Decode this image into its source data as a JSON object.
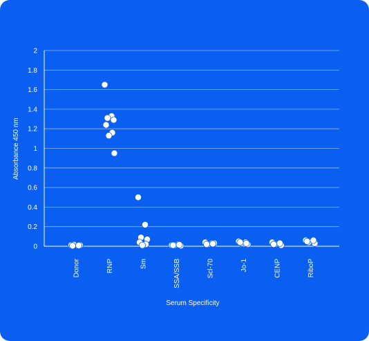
{
  "chart_data": {
    "type": "scatter",
    "title": "",
    "xlabel": "Serum Specificity",
    "ylabel": "Absorbance 450 nm",
    "ylim": [
      0,
      2
    ],
    "yticks": [
      "0",
      "0.2",
      "0.4",
      "0.6",
      "0.8",
      "1",
      "1.2",
      "1.4",
      "1.6",
      "1.8",
      "2"
    ],
    "grid": true,
    "categories": [
      "Donor",
      "RNP",
      "Sm",
      "SSA/SSB",
      "Scl-70",
      "Jo-1",
      "CENP",
      "RiboP"
    ],
    "points": [
      {
        "category": "Donor",
        "y": [
          0.01,
          0.005,
          0.015,
          0.01,
          0.005,
          0.008
        ]
      },
      {
        "category": "RNP",
        "y": [
          1.65,
          1.33,
          1.31,
          1.29,
          1.24,
          1.16,
          1.13,
          0.95
        ]
      },
      {
        "category": "Sm",
        "y": [
          0.5,
          0.22,
          0.09,
          0.07,
          0.04,
          0.02,
          0.01
        ]
      },
      {
        "category": "SSA/SSB",
        "y": [
          0.01,
          0.02,
          0.01,
          0.005,
          0.01,
          0.015
        ]
      },
      {
        "category": "Scl-70",
        "y": [
          0.04,
          0.03,
          0.02,
          0.03,
          0.02,
          0.025
        ]
      },
      {
        "category": "Jo-1",
        "y": [
          0.05,
          0.04,
          0.03,
          0.02,
          0.04,
          0.03
        ]
      },
      {
        "category": "CENP",
        "y": [
          0.04,
          0.03,
          0.02,
          0.01,
          0.02,
          0.03
        ]
      },
      {
        "category": "RiboP",
        "y": [
          0.06,
          0.05,
          0.04,
          0.03,
          0.05,
          0.06
        ]
      }
    ]
  },
  "colors": {
    "background": "#0a5ff0",
    "foreground": "#ffffff"
  }
}
